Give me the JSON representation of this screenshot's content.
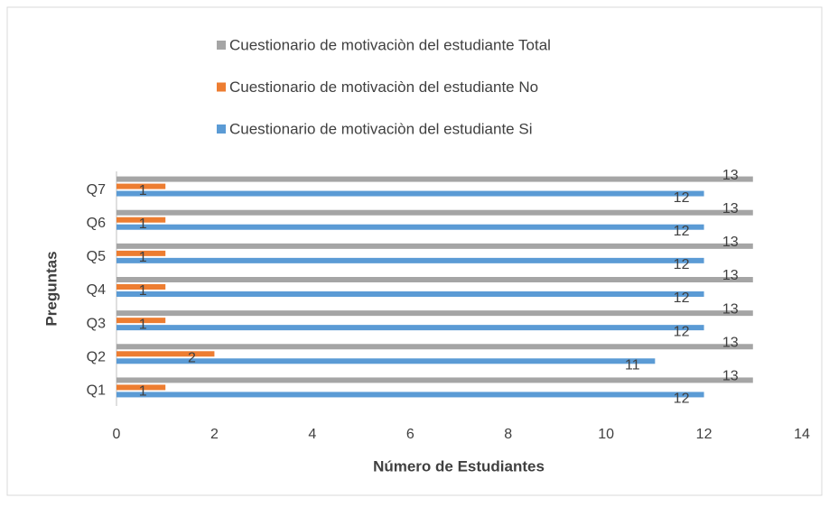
{
  "chart_data": {
    "type": "bar",
    "orientation": "horizontal",
    "categories": [
      "Q1",
      "Q2",
      "Q3",
      "Q4",
      "Q5",
      "Q6",
      "Q7"
    ],
    "series": [
      {
        "name": "Cuestionario de motivaciòn del estudiante Si",
        "color": "#5b9bd5",
        "values": [
          12,
          11,
          12,
          12,
          12,
          12,
          12
        ]
      },
      {
        "name": "Cuestionario de motivaciòn del estudiante No",
        "color": "#ed7d31",
        "values": [
          1,
          2,
          1,
          1,
          1,
          1,
          1
        ]
      },
      {
        "name": "Cuestionario de motivaciòn del estudiante Total",
        "color": "#a5a5a5",
        "values": [
          13,
          13,
          13,
          13,
          13,
          13,
          13
        ]
      }
    ],
    "xlim": [
      0,
      14
    ],
    "xticks": [
      0,
      2,
      4,
      6,
      8,
      10,
      12,
      14
    ],
    "xlabel": "Número de Estudiantes",
    "ylabel": "Preguntas",
    "legend": "top",
    "data_labels": true
  }
}
